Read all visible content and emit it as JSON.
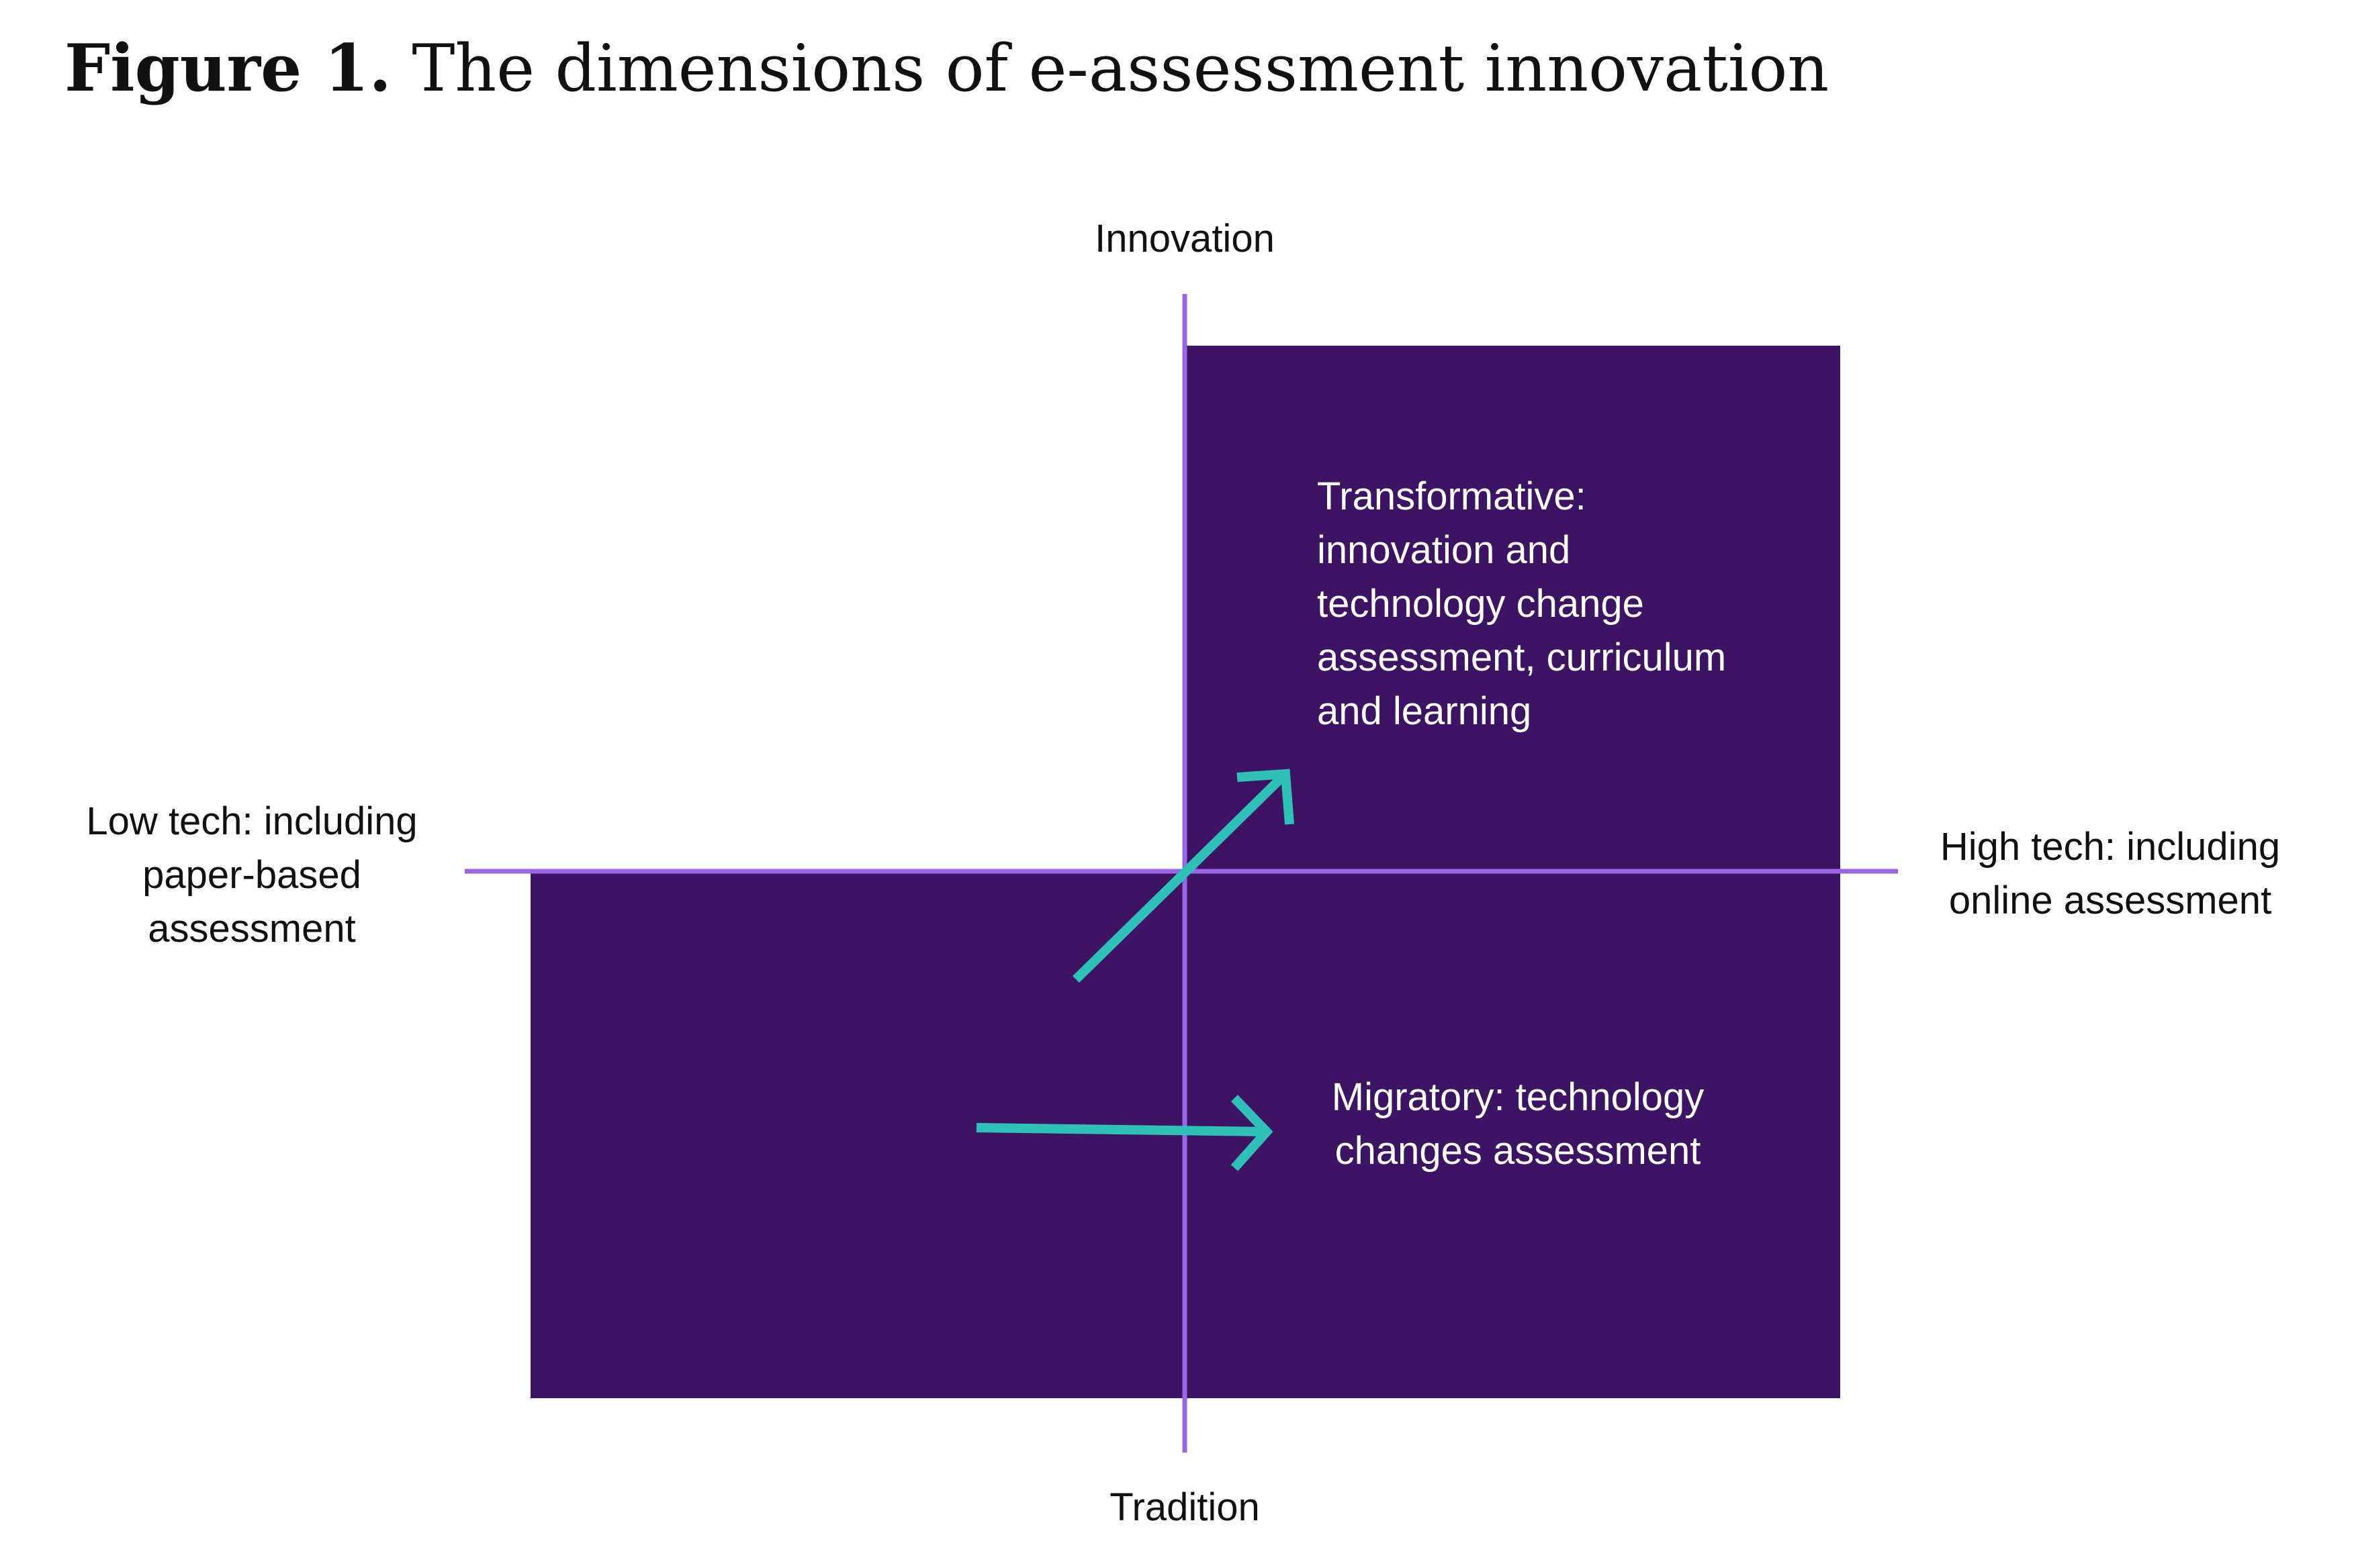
{
  "figure": {
    "label": "Figure 1.",
    "title": "The dimensions of e-assessment innovation"
  },
  "axes": {
    "top": "Innovation",
    "bottom": "Tradition",
    "left": [
      "Low tech: including",
      "paper-based",
      "assessment"
    ],
    "right": [
      "High tech: including",
      "online assessment"
    ]
  },
  "regions": {
    "transformative": [
      "Transformative:",
      "innovation and",
      "technology change",
      "assessment, curriculum",
      "and learning"
    ],
    "migratory": [
      "Migratory: technology",
      "changes assessment"
    ]
  },
  "colors": {
    "block_fill": "#3d1463",
    "axis_line": "#9966e6",
    "arrow": "#2fc1b8",
    "region_text": "#ffffff"
  }
}
